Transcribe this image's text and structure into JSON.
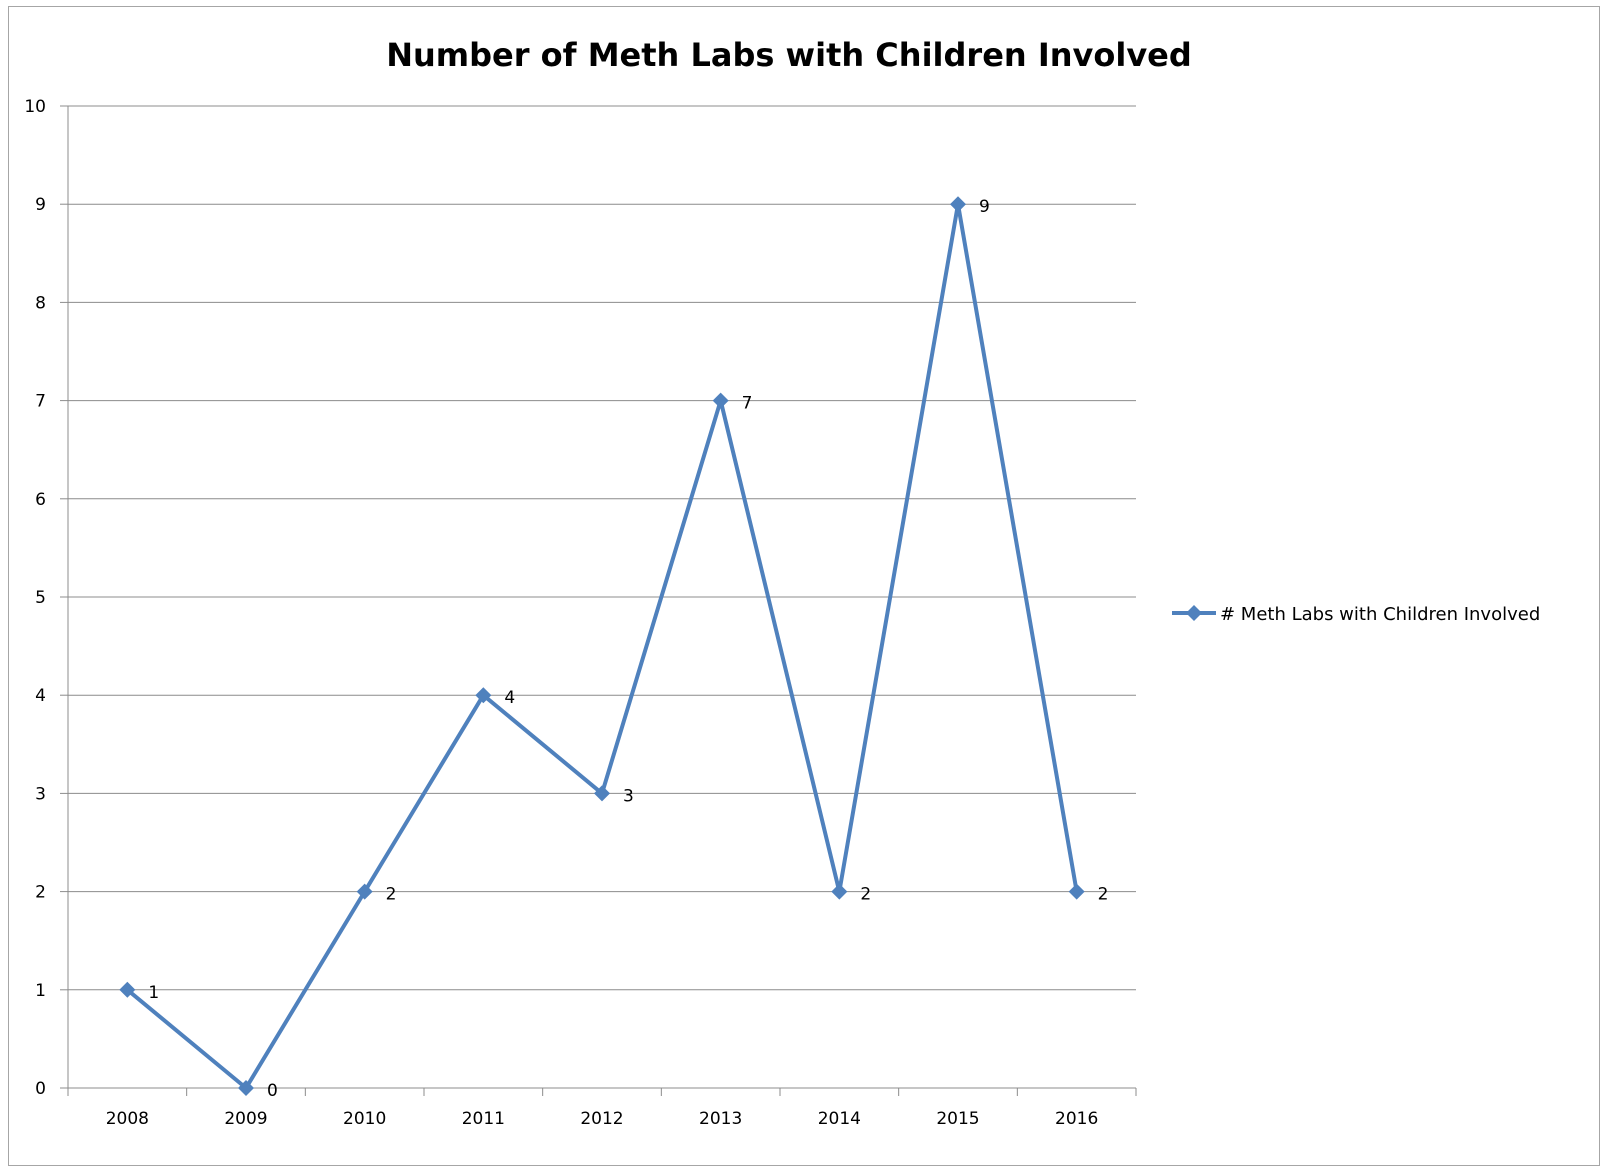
{
  "chart_data": {
    "type": "line",
    "title": "Number of Meth Labs with Children Involved",
    "categories": [
      "2008",
      "2009",
      "2010",
      "2011",
      "2012",
      "2013",
      "2014",
      "2015",
      "2016"
    ],
    "series": [
      {
        "name": "# Meth Labs with Children Involved",
        "values": [
          1,
          0,
          2,
          4,
          3,
          7,
          2,
          9,
          2
        ],
        "color": "#4f81bd",
        "marker": "diamond"
      }
    ],
    "ylim": [
      0,
      10
    ],
    "yticks": [
      "0",
      "1",
      "2",
      "3",
      "4",
      "5",
      "6",
      "7",
      "8",
      "9",
      "10"
    ],
    "grid": true,
    "data_labels": true,
    "legend_position": "right"
  }
}
